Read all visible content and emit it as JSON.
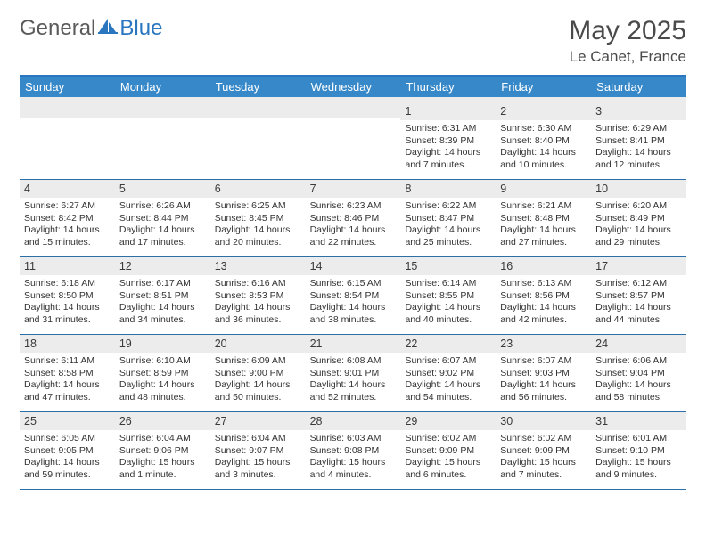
{
  "brand": {
    "part1": "General",
    "part2": "Blue"
  },
  "title": "May 2025",
  "location": "Le Canet, France",
  "colors": {
    "header_bar": "#3788c9",
    "border": "#2a6fa8",
    "daynum_bg": "#ececec",
    "text": "#333333",
    "brand_blue": "#2a77c0",
    "brand_gray": "#5a5a5a",
    "page_bg": "#ffffff"
  },
  "daysOfWeek": [
    "Sunday",
    "Monday",
    "Tuesday",
    "Wednesday",
    "Thursday",
    "Friday",
    "Saturday"
  ],
  "weeks": [
    [
      null,
      null,
      null,
      null,
      {
        "n": "1",
        "sunrise": "6:31 AM",
        "sunset": "8:39 PM",
        "daylight": "14 hours and 7 minutes."
      },
      {
        "n": "2",
        "sunrise": "6:30 AM",
        "sunset": "8:40 PM",
        "daylight": "14 hours and 10 minutes."
      },
      {
        "n": "3",
        "sunrise": "6:29 AM",
        "sunset": "8:41 PM",
        "daylight": "14 hours and 12 minutes."
      }
    ],
    [
      {
        "n": "4",
        "sunrise": "6:27 AM",
        "sunset": "8:42 PM",
        "daylight": "14 hours and 15 minutes."
      },
      {
        "n": "5",
        "sunrise": "6:26 AM",
        "sunset": "8:44 PM",
        "daylight": "14 hours and 17 minutes."
      },
      {
        "n": "6",
        "sunrise": "6:25 AM",
        "sunset": "8:45 PM",
        "daylight": "14 hours and 20 minutes."
      },
      {
        "n": "7",
        "sunrise": "6:23 AM",
        "sunset": "8:46 PM",
        "daylight": "14 hours and 22 minutes."
      },
      {
        "n": "8",
        "sunrise": "6:22 AM",
        "sunset": "8:47 PM",
        "daylight": "14 hours and 25 minutes."
      },
      {
        "n": "9",
        "sunrise": "6:21 AM",
        "sunset": "8:48 PM",
        "daylight": "14 hours and 27 minutes."
      },
      {
        "n": "10",
        "sunrise": "6:20 AM",
        "sunset": "8:49 PM",
        "daylight": "14 hours and 29 minutes."
      }
    ],
    [
      {
        "n": "11",
        "sunrise": "6:18 AM",
        "sunset": "8:50 PM",
        "daylight": "14 hours and 31 minutes."
      },
      {
        "n": "12",
        "sunrise": "6:17 AM",
        "sunset": "8:51 PM",
        "daylight": "14 hours and 34 minutes."
      },
      {
        "n": "13",
        "sunrise": "6:16 AM",
        "sunset": "8:53 PM",
        "daylight": "14 hours and 36 minutes."
      },
      {
        "n": "14",
        "sunrise": "6:15 AM",
        "sunset": "8:54 PM",
        "daylight": "14 hours and 38 minutes."
      },
      {
        "n": "15",
        "sunrise": "6:14 AM",
        "sunset": "8:55 PM",
        "daylight": "14 hours and 40 minutes."
      },
      {
        "n": "16",
        "sunrise": "6:13 AM",
        "sunset": "8:56 PM",
        "daylight": "14 hours and 42 minutes."
      },
      {
        "n": "17",
        "sunrise": "6:12 AM",
        "sunset": "8:57 PM",
        "daylight": "14 hours and 44 minutes."
      }
    ],
    [
      {
        "n": "18",
        "sunrise": "6:11 AM",
        "sunset": "8:58 PM",
        "daylight": "14 hours and 47 minutes."
      },
      {
        "n": "19",
        "sunrise": "6:10 AM",
        "sunset": "8:59 PM",
        "daylight": "14 hours and 48 minutes."
      },
      {
        "n": "20",
        "sunrise": "6:09 AM",
        "sunset": "9:00 PM",
        "daylight": "14 hours and 50 minutes."
      },
      {
        "n": "21",
        "sunrise": "6:08 AM",
        "sunset": "9:01 PM",
        "daylight": "14 hours and 52 minutes."
      },
      {
        "n": "22",
        "sunrise": "6:07 AM",
        "sunset": "9:02 PM",
        "daylight": "14 hours and 54 minutes."
      },
      {
        "n": "23",
        "sunrise": "6:07 AM",
        "sunset": "9:03 PM",
        "daylight": "14 hours and 56 minutes."
      },
      {
        "n": "24",
        "sunrise": "6:06 AM",
        "sunset": "9:04 PM",
        "daylight": "14 hours and 58 minutes."
      }
    ],
    [
      {
        "n": "25",
        "sunrise": "6:05 AM",
        "sunset": "9:05 PM",
        "daylight": "14 hours and 59 minutes."
      },
      {
        "n": "26",
        "sunrise": "6:04 AM",
        "sunset": "9:06 PM",
        "daylight": "15 hours and 1 minute."
      },
      {
        "n": "27",
        "sunrise": "6:04 AM",
        "sunset": "9:07 PM",
        "daylight": "15 hours and 3 minutes."
      },
      {
        "n": "28",
        "sunrise": "6:03 AM",
        "sunset": "9:08 PM",
        "daylight": "15 hours and 4 minutes."
      },
      {
        "n": "29",
        "sunrise": "6:02 AM",
        "sunset": "9:09 PM",
        "daylight": "15 hours and 6 minutes."
      },
      {
        "n": "30",
        "sunrise": "6:02 AM",
        "sunset": "9:09 PM",
        "daylight": "15 hours and 7 minutes."
      },
      {
        "n": "31",
        "sunrise": "6:01 AM",
        "sunset": "9:10 PM",
        "daylight": "15 hours and 9 minutes."
      }
    ]
  ],
  "labels": {
    "sunrise": "Sunrise:",
    "sunset": "Sunset:",
    "daylight": "Daylight:"
  }
}
